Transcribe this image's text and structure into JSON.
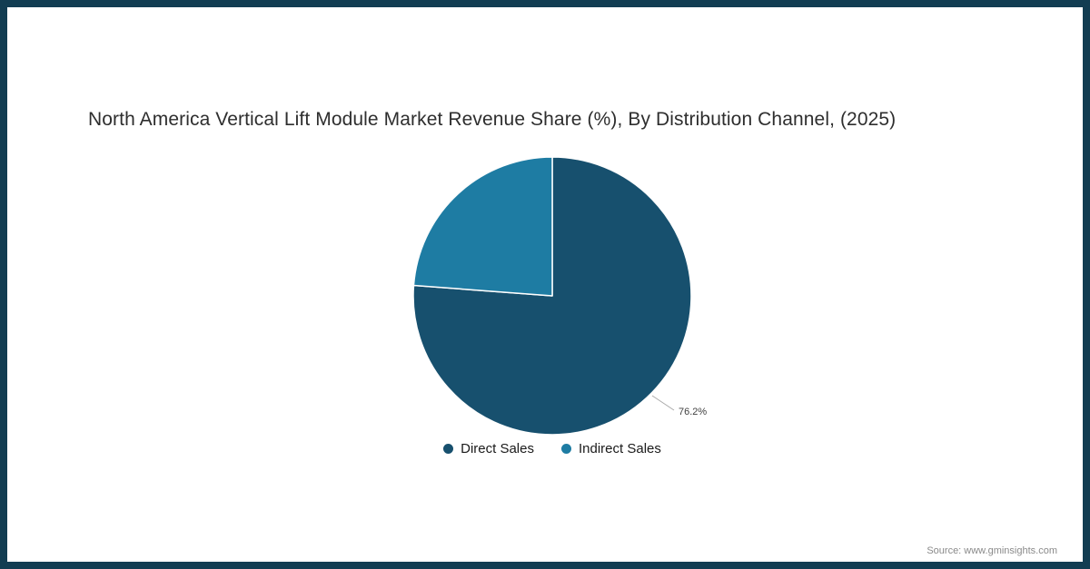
{
  "chart_data": {
    "type": "pie",
    "title": "North America Vertical Lift Module Market Revenue Share (%), By Distribution Channel, (2025)",
    "series": [
      {
        "name": "Direct Sales",
        "value": 76.2,
        "color": "#17506e"
      },
      {
        "name": "Indirect Sales",
        "value": 23.8,
        "color": "#1e7ca3"
      }
    ],
    "start_angle_deg": -90,
    "direction": "clockwise",
    "data_label": "76.2%",
    "legend_position": "bottom"
  },
  "legend": {
    "items": [
      {
        "label": "Direct Sales",
        "color": "#17506e"
      },
      {
        "label": "Indirect Sales",
        "color": "#1e7ca3"
      }
    ]
  },
  "source": "Source: www.gminsights.com",
  "frame": {
    "border_color": "#123d52"
  }
}
